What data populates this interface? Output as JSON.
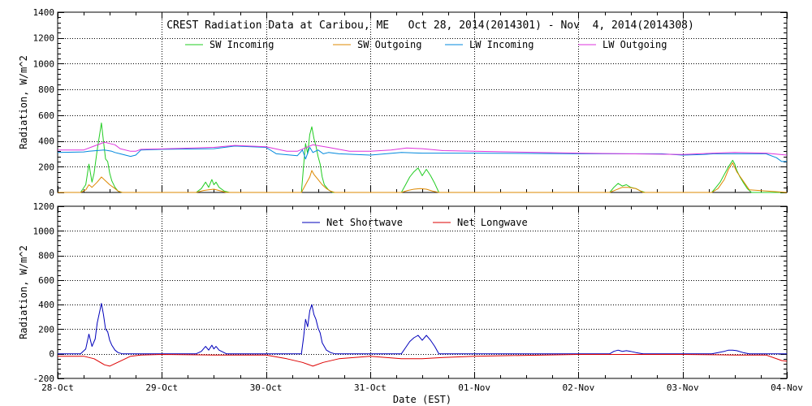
{
  "chart_data": [
    {
      "type": "line",
      "title": "CREST Radiation Data at Caribou, ME   Oct 28, 2014(2014301) - Nov  4, 2014(2014308)",
      "xlabel": "",
      "ylabel": "Radiation, W/m^2",
      "xlim": [
        0,
        7
      ],
      "ylim": [
        0,
        1400
      ],
      "yticks": [
        0,
        200,
        400,
        600,
        800,
        1000,
        1200,
        1400
      ],
      "grid": true,
      "legend_position": "top",
      "series": [
        {
          "name": "SW Incoming",
          "color": "#22cc22",
          "x": [
            0,
            0.22,
            0.27,
            0.3,
            0.33,
            0.35,
            0.38,
            0.42,
            0.44,
            0.46,
            0.48,
            0.5,
            0.52,
            0.55,
            0.58,
            0.62,
            0.66,
            1.0,
            1.33,
            1.38,
            1.42,
            1.45,
            1.48,
            1.5,
            1.52,
            1.55,
            1.6,
            1.65,
            2.0,
            2.34,
            2.36,
            2.38,
            2.4,
            2.42,
            2.44,
            2.46,
            2.48,
            2.5,
            2.52,
            2.54,
            2.56,
            2.6,
            2.64,
            2.66,
            3.0,
            3.3,
            3.34,
            3.38,
            3.42,
            3.46,
            3.5,
            3.54,
            3.58,
            3.62,
            3.66,
            4.0,
            5.3,
            5.34,
            5.38,
            5.42,
            5.46,
            5.5,
            5.55,
            5.6,
            5.64,
            6.0,
            6.28,
            6.32,
            6.36,
            6.4,
            6.44,
            6.48,
            6.5,
            6.52,
            6.55,
            6.58,
            6.62,
            6.66,
            7.0
          ],
          "values": [
            0,
            0,
            60,
            220,
            80,
            150,
            330,
            540,
            400,
            260,
            240,
            150,
            90,
            40,
            10,
            0,
            0,
            0,
            0,
            30,
            80,
            40,
            100,
            60,
            80,
            40,
            10,
            0,
            0,
            0,
            200,
            380,
            300,
            450,
            510,
            420,
            360,
            280,
            220,
            120,
            60,
            20,
            0,
            0,
            0,
            0,
            60,
            120,
            160,
            190,
            130,
            180,
            130,
            70,
            0,
            0,
            0,
            40,
            70,
            50,
            60,
            40,
            30,
            10,
            0,
            0,
            0,
            40,
            80,
            140,
            200,
            250,
            220,
            170,
            120,
            80,
            30,
            0,
            0
          ]
        },
        {
          "name": "SW Outgoing",
          "color": "#dd8800",
          "x": [
            0,
            0.22,
            0.27,
            0.3,
            0.33,
            0.38,
            0.42,
            0.46,
            0.5,
            0.55,
            0.58,
            0.62,
            1.0,
            1.33,
            1.4,
            1.45,
            1.5,
            1.55,
            1.62,
            2.0,
            2.34,
            2.38,
            2.42,
            2.44,
            2.46,
            2.5,
            2.54,
            2.58,
            2.62,
            2.66,
            3.0,
            3.3,
            3.36,
            3.42,
            3.48,
            3.54,
            3.6,
            3.66,
            4.0,
            5.3,
            5.36,
            5.42,
            5.48,
            5.55,
            5.62,
            6.0,
            6.28,
            6.34,
            6.4,
            6.44,
            6.48,
            6.52,
            6.58,
            6.64,
            7.0
          ],
          "values": [
            0,
            0,
            20,
            60,
            40,
            80,
            120,
            90,
            60,
            30,
            10,
            0,
            0,
            0,
            15,
            20,
            25,
            15,
            0,
            0,
            0,
            60,
            120,
            170,
            140,
            100,
            60,
            30,
            10,
            0,
            0,
            0,
            15,
            25,
            30,
            25,
            10,
            0,
            0,
            0,
            20,
            40,
            40,
            30,
            0,
            0,
            0,
            30,
            100,
            180,
            230,
            160,
            90,
            20,
            0
          ]
        },
        {
          "name": "LW Incoming",
          "color": "#0088dd",
          "x": [
            0,
            0.25,
            0.3,
            0.45,
            0.52,
            0.55,
            0.6,
            0.7,
            0.75,
            0.8,
            1.0,
            1.5,
            1.7,
            2.0,
            2.1,
            2.3,
            2.35,
            2.38,
            2.42,
            2.45,
            2.5,
            2.55,
            2.6,
            2.7,
            3.0,
            3.3,
            3.5,
            4.0,
            5.0,
            5.8,
            6.0,
            6.2,
            6.3,
            6.5,
            6.8,
            6.9,
            6.95,
            7.0
          ],
          "values": [
            310,
            315,
            320,
            330,
            320,
            310,
            300,
            280,
            290,
            330,
            335,
            340,
            360,
            350,
            300,
            285,
            330,
            260,
            350,
            310,
            330,
            300,
            310,
            300,
            290,
            310,
            305,
            305,
            300,
            300,
            290,
            295,
            300,
            300,
            300,
            270,
            240,
            240
          ]
        },
        {
          "name": "LW Outgoing",
          "color": "#dd33dd",
          "x": [
            0,
            0.25,
            0.35,
            0.45,
            0.55,
            0.6,
            0.7,
            0.75,
            0.8,
            1.0,
            1.5,
            1.7,
            2.0,
            2.2,
            2.3,
            2.45,
            2.6,
            2.8,
            3.0,
            3.2,
            3.35,
            3.5,
            3.7,
            4.0,
            5.0,
            6.0,
            6.3,
            6.5,
            6.8,
            7.0
          ],
          "values": [
            330,
            330,
            360,
            390,
            370,
            340,
            320,
            320,
            335,
            338,
            350,
            365,
            355,
            320,
            320,
            370,
            350,
            320,
            320,
            330,
            345,
            340,
            325,
            320,
            305,
            295,
            305,
            310,
            305,
            290
          ]
        }
      ]
    },
    {
      "type": "line",
      "title": "",
      "xlabel": "Date (EST)",
      "ylabel": "Radiation, W/m^2",
      "xlim": [
        0,
        7
      ],
      "ylim": [
        -200,
        1200
      ],
      "yticks": [
        -200,
        0,
        200,
        400,
        600,
        800,
        1000,
        1200
      ],
      "xtick_labels": [
        "28-Oct",
        "29-Oct",
        "30-Oct",
        "31-Oct",
        "01-Nov",
        "02-Nov",
        "03-Nov",
        "04-Nov"
      ],
      "grid": true,
      "legend_position": "top",
      "series": [
        {
          "name": "Net Shortwave",
          "color": "#0000bb",
          "x": [
            0,
            0.22,
            0.27,
            0.3,
            0.33,
            0.36,
            0.38,
            0.42,
            0.44,
            0.46,
            0.48,
            0.5,
            0.52,
            0.55,
            0.58,
            0.62,
            0.66,
            1.0,
            1.33,
            1.38,
            1.42,
            1.45,
            1.48,
            1.5,
            1.52,
            1.55,
            1.62,
            2.0,
            2.34,
            2.36,
            2.38,
            2.4,
            2.42,
            2.44,
            2.46,
            2.48,
            2.5,
            2.52,
            2.54,
            2.58,
            2.62,
            2.66,
            3.0,
            3.3,
            3.34,
            3.38,
            3.42,
            3.46,
            3.5,
            3.54,
            3.58,
            3.62,
            3.66,
            4.0,
            5.3,
            5.34,
            5.38,
            5.42,
            5.46,
            5.5,
            5.55,
            5.62,
            6.0,
            6.28,
            6.34,
            6.4,
            6.44,
            6.48,
            6.52,
            6.58,
            6.64,
            7.0
          ],
          "values": [
            0,
            0,
            40,
            160,
            60,
            120,
            250,
            410,
            320,
            200,
            180,
            110,
            70,
            30,
            10,
            0,
            0,
            0,
            0,
            20,
            60,
            30,
            70,
            40,
            60,
            30,
            0,
            0,
            0,
            130,
            280,
            220,
            350,
            400,
            320,
            280,
            210,
            170,
            90,
            30,
            10,
            0,
            0,
            0,
            50,
            100,
            130,
            150,
            110,
            150,
            110,
            60,
            0,
            0,
            0,
            20,
            30,
            20,
            25,
            20,
            10,
            0,
            0,
            0,
            10,
            20,
            30,
            30,
            25,
            10,
            0,
            0
          ]
        },
        {
          "name": "Net Longwave",
          "color": "#dd0000",
          "x": [
            0,
            0.25,
            0.35,
            0.45,
            0.5,
            0.55,
            0.6,
            0.7,
            0.8,
            1.0,
            1.5,
            1.7,
            2.0,
            2.2,
            2.35,
            2.45,
            2.55,
            2.7,
            3.0,
            3.3,
            3.5,
            3.7,
            4.0,
            5.0,
            6.0,
            6.5,
            6.8,
            6.95,
            7.0
          ],
          "values": [
            -20,
            -20,
            -40,
            -90,
            -100,
            -80,
            -60,
            -20,
            -10,
            -5,
            -10,
            -10,
            -10,
            -40,
            -70,
            -100,
            -70,
            -40,
            -20,
            -40,
            -40,
            -30,
            -20,
            -5,
            -5,
            -10,
            -10,
            -55,
            -60
          ]
        }
      ]
    }
  ]
}
